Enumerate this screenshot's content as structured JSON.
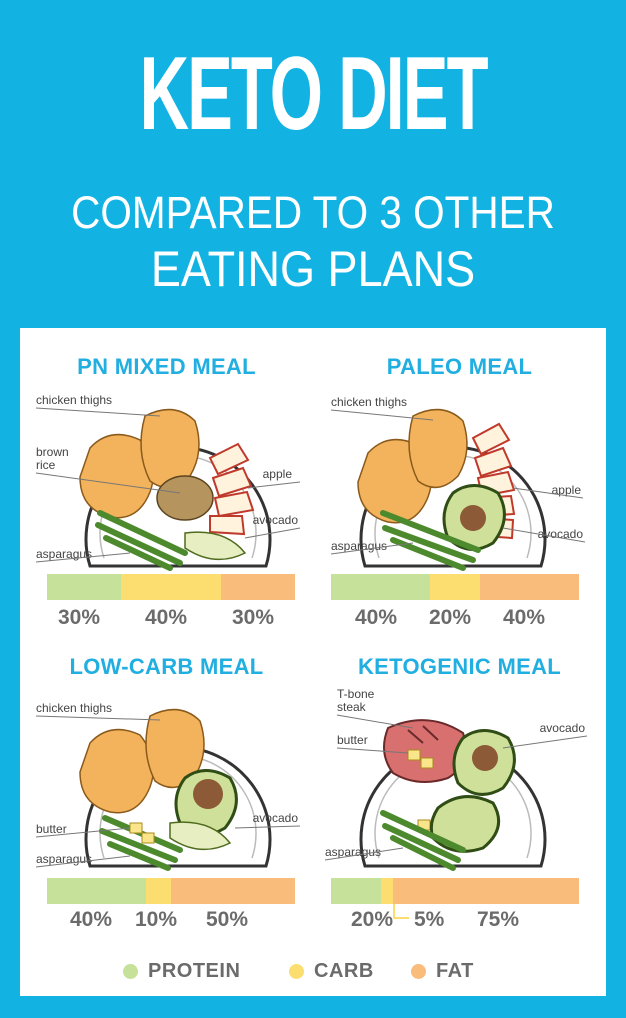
{
  "header": {
    "title": "KETO DIET",
    "subtitle_line1": "COMPARED TO 3 OTHER",
    "subtitle_line2": "EATING PLANS"
  },
  "colors": {
    "background": "#12b3e3",
    "protein": "#c6e29a",
    "carb": "#fbde6f",
    "fat": "#f9bc7a",
    "heading": "#21aee0"
  },
  "meals": [
    {
      "title": "PN MIXED MEAL",
      "labels": [
        "chicken thighs",
        "brown\nrice",
        "apple",
        "avocado",
        "asparagus"
      ],
      "protein": 30,
      "carb": 40,
      "fat": 30,
      "pct_labels": [
        "30%",
        "40%",
        "30%"
      ]
    },
    {
      "title": "PALEO MEAL",
      "labels": [
        "chicken thighs",
        "apple",
        "avocado",
        "asparagus"
      ],
      "protein": 40,
      "carb": 20,
      "fat": 40,
      "pct_labels": [
        "40%",
        "20%",
        "40%"
      ]
    },
    {
      "title": "LOW-CARB MEAL",
      "labels": [
        "chicken thighs",
        "butter",
        "avocado",
        "asparagus"
      ],
      "protein": 40,
      "carb": 10,
      "fat": 50,
      "pct_labels": [
        "40%",
        "10%",
        "50%"
      ]
    },
    {
      "title": "KETOGENIC MEAL",
      "labels": [
        "T-bone\nsteak",
        "butter",
        "avocado",
        "asparagus"
      ],
      "protein": 20,
      "carb": 5,
      "fat": 75,
      "pct_labels": [
        "20%",
        "5%",
        "75%"
      ]
    }
  ],
  "legend": [
    {
      "label": "PROTEIN",
      "color": "#c6e29a"
    },
    {
      "label": "CARB",
      "color": "#fbde6f"
    },
    {
      "label": "FAT",
      "color": "#f9bc7a"
    }
  ]
}
